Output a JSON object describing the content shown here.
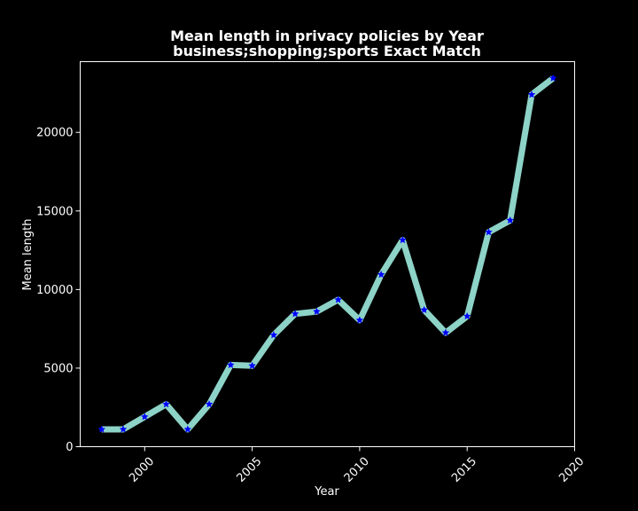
{
  "chart_data": {
    "type": "line",
    "title": "Mean length in privacy policies by Year",
    "subtitle": "business;shopping;sports Exact Match",
    "xlabel": "Year",
    "ylabel": "Mean length",
    "xlim": [
      1997.0,
      2020.0
    ],
    "ylim": [
      0,
      24500
    ],
    "xticks": [
      2000,
      2005,
      2010,
      2015,
      2020
    ],
    "yticks": [
      0,
      5000,
      10000,
      15000,
      20000
    ],
    "grid": false,
    "colors": {
      "background": "#000000",
      "line": "#8dd3c7",
      "marker": "#0000ff",
      "axes": "#ffffff"
    },
    "series": [
      {
        "x": [
          1998,
          1999,
          2000,
          2001,
          2002,
          2003,
          2004,
          2005,
          2006,
          2007,
          2008,
          2009,
          2010,
          2011,
          2012,
          2013,
          2014,
          2015,
          2016,
          2017,
          2018,
          2019
        ],
        "values": [
          1100,
          1100,
          1900,
          2700,
          1100,
          2700,
          5200,
          5150,
          7100,
          8450,
          8600,
          9350,
          8050,
          10950,
          13150,
          8700,
          7250,
          8300,
          13650,
          14400,
          22400,
          23450
        ]
      }
    ]
  }
}
